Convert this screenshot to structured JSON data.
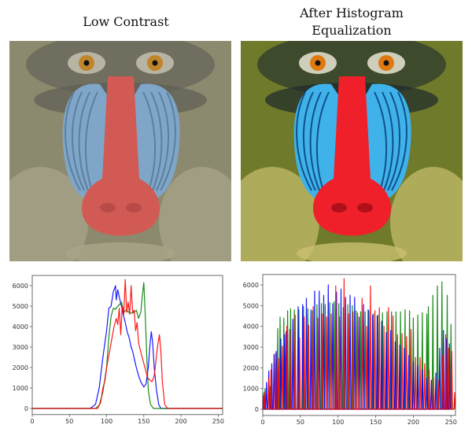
{
  "panels": [
    {
      "title_lines": [
        "Low Contrast"
      ]
    },
    {
      "title_lines": [
        "After Histogram",
        "Equalization"
      ]
    }
  ],
  "image_palettes": [
    {
      "fur": "#8c8a6e",
      "fur2": "#a9a58a",
      "dark": "#5e5c54",
      "cheek": "#7fa6c8",
      "cheek_line": "#5d7f9e",
      "nose": "#d25a55",
      "nose_dark": "#b84a48",
      "eye": "#c0842a",
      "white": "#c9c5b4"
    },
    {
      "fur": "#6f7a2a",
      "fur2": "#c9c070",
      "dark": "#1e2a2e",
      "cheek": "#3fb2ea",
      "cheek_line": "#10508a",
      "nose": "#f0202a",
      "nose_dark": "#b0101a",
      "eye": "#e07a10",
      "white": "#f2efe0"
    }
  ],
  "chart_data": [
    {
      "type": "line",
      "xlim": [
        0,
        256
      ],
      "ylim": [
        -300,
        6500
      ],
      "xticks": [
        0,
        50,
        100,
        150,
        200,
        250
      ],
      "yticks": [
        0,
        1000,
        2000,
        3000,
        4000,
        5000,
        6000
      ],
      "grid": false,
      "series": [
        {
          "color": "#0000ff",
          "points": [
            [
              0,
              0
            ],
            [
              78,
              0
            ],
            [
              85,
              200
            ],
            [
              90,
              1000
            ],
            [
              95,
              2500
            ],
            [
              100,
              3800
            ],
            [
              103,
              4900
            ],
            [
              106,
              5000
            ],
            [
              109,
              5700
            ],
            [
              112,
              6000
            ],
            [
              113,
              5300
            ],
            [
              115,
              5800
            ],
            [
              118,
              5300
            ],
            [
              120,
              5000
            ],
            [
              123,
              4500
            ],
            [
              125,
              4200
            ],
            [
              128,
              3700
            ],
            [
              130,
              3500
            ],
            [
              133,
              3000
            ],
            [
              135,
              2800
            ],
            [
              138,
              2300
            ],
            [
              140,
              2000
            ],
            [
              143,
              1600
            ],
            [
              146,
              1300
            ],
            [
              150,
              1050
            ],
            [
              153,
              1200
            ],
            [
              156,
              2000
            ],
            [
              158,
              3000
            ],
            [
              160,
              3750
            ],
            [
              162,
              3200
            ],
            [
              164,
              2000
            ],
            [
              167,
              900
            ],
            [
              170,
              200
            ],
            [
              173,
              0
            ],
            [
              256,
              0
            ]
          ]
        },
        {
          "color": "#008000",
          "points": [
            [
              0,
              0
            ],
            [
              85,
              0
            ],
            [
              90,
              150
            ],
            [
              95,
              800
            ],
            [
              100,
              2000
            ],
            [
              103,
              3500
            ],
            [
              106,
              4500
            ],
            [
              109,
              4900
            ],
            [
              112,
              4850
            ],
            [
              115,
              5000
            ],
            [
              118,
              5100
            ],
            [
              120,
              5200
            ],
            [
              123,
              4700
            ],
            [
              126,
              4800
            ],
            [
              130,
              4700
            ],
            [
              134,
              4650
            ],
            [
              137,
              4700
            ],
            [
              140,
              4800
            ],
            [
              143,
              4400
            ],
            [
              146,
              4700
            ],
            [
              148,
              5500
            ],
            [
              150,
              6150
            ],
            [
              152,
              4500
            ],
            [
              154,
              2500
            ],
            [
              156,
              900
            ],
            [
              159,
              200
            ],
            [
              163,
              0
            ],
            [
              256,
              0
            ]
          ]
        },
        {
          "color": "#ff0000",
          "points": [
            [
              0,
              0
            ],
            [
              88,
              0
            ],
            [
              92,
              300
            ],
            [
              95,
              1000
            ],
            [
              98,
              1400
            ],
            [
              100,
              2000
            ],
            [
              103,
              2600
            ],
            [
              105,
              3000
            ],
            [
              108,
              3600
            ],
            [
              110,
              4000
            ],
            [
              113,
              4400
            ],
            [
              115,
              4100
            ],
            [
              117,
              4900
            ],
            [
              119,
              3600
            ],
            [
              121,
              5000
            ],
            [
              123,
              4600
            ],
            [
              125,
              6300
            ],
            [
              127,
              4700
            ],
            [
              129,
              5200
            ],
            [
              131,
              4600
            ],
            [
              133,
              6000
            ],
            [
              135,
              4700
            ],
            [
              137,
              4800
            ],
            [
              139,
              3800
            ],
            [
              141,
              4200
            ],
            [
              143,
              3200
            ],
            [
              145,
              2900
            ],
            [
              147,
              2600
            ],
            [
              150,
              2200
            ],
            [
              153,
              1800
            ],
            [
              155,
              1500
            ],
            [
              158,
              1400
            ],
            [
              161,
              1300
            ],
            [
              164,
              1600
            ],
            [
              166,
              2200
            ],
            [
              168,
              2900
            ],
            [
              171,
              3600
            ],
            [
              173,
              2800
            ],
            [
              175,
              1300
            ],
            [
              178,
              200
            ],
            [
              182,
              0
            ],
            [
              256,
              0
            ]
          ]
        }
      ]
    },
    {
      "type": "line",
      "xlim": [
        0,
        256
      ],
      "ylim": [
        -300,
        6500
      ],
      "xticks": [
        0,
        50,
        100,
        150,
        200,
        250
      ],
      "yticks": [
        0,
        1000,
        2000,
        3000,
        4000,
        5000,
        6000
      ],
      "grid": false,
      "series": [
        {
          "color": "#008000",
          "peaks": [
            [
              3,
              1000
            ],
            [
              10,
              1100
            ],
            [
              20,
              3900
            ],
            [
              23,
              4450
            ],
            [
              28,
              4400
            ],
            [
              33,
              4750
            ],
            [
              37,
              4850
            ],
            [
              42,
              4800
            ],
            [
              48,
              4800
            ],
            [
              54,
              4950
            ],
            [
              60,
              4850
            ],
            [
              66,
              4750
            ],
            [
              72,
              5050
            ],
            [
              78,
              5100
            ],
            [
              83,
              5050
            ],
            [
              89,
              5150
            ],
            [
              95,
              5200
            ],
            [
              101,
              5100
            ],
            [
              107,
              4900
            ],
            [
              113,
              5050
            ],
            [
              119,
              5000
            ],
            [
              124,
              4750
            ],
            [
              130,
              4700
            ],
            [
              136,
              4700
            ],
            [
              141,
              4750
            ],
            [
              147,
              4600
            ],
            [
              153,
              4550
            ],
            [
              159,
              4650
            ],
            [
              165,
              4700
            ],
            [
              171,
              4700
            ],
            [
              177,
              4700
            ],
            [
              183,
              4700
            ],
            [
              189,
              4800
            ],
            [
              195,
              4750
            ],
            [
              200,
              4400
            ],
            [
              206,
              4550
            ],
            [
              212,
              4650
            ],
            [
              218,
              4600
            ],
            [
              220,
              4950
            ],
            [
              226,
              5500
            ],
            [
              232,
              5950
            ],
            [
              238,
              6150
            ],
            [
              245,
              5500
            ],
            [
              250,
              4100
            ],
            [
              255,
              500
            ]
          ]
        },
        {
          "color": "#0000ff",
          "peaks": [
            [
              1,
              600
            ],
            [
              5,
              1300
            ],
            [
              8,
              1850
            ],
            [
              12,
              2200
            ],
            [
              15,
              2650
            ],
            [
              18,
              2800
            ],
            [
              24,
              3400
            ],
            [
              29,
              3600
            ],
            [
              31,
              3750
            ],
            [
              36,
              3850
            ],
            [
              40,
              4350
            ],
            [
              47,
              4950
            ],
            [
              53,
              5050
            ],
            [
              58,
              5350
            ],
            [
              64,
              4800
            ],
            [
              69,
              5700
            ],
            [
              75,
              5700
            ],
            [
              81,
              5500
            ],
            [
              87,
              6000
            ],
            [
              93,
              5100
            ],
            [
              98,
              5650
            ],
            [
              104,
              5800
            ],
            [
              110,
              5400
            ],
            [
              116,
              5500
            ],
            [
              122,
              5400
            ],
            [
              128,
              4450
            ],
            [
              134,
              5050
            ],
            [
              140,
              4800
            ],
            [
              146,
              4550
            ],
            [
              152,
              4500
            ],
            [
              158,
              4250
            ],
            [
              164,
              3700
            ],
            [
              170,
              3800
            ],
            [
              176,
              3250
            ],
            [
              182,
              3100
            ],
            [
              188,
              2950
            ],
            [
              194,
              2600
            ],
            [
              200,
              2300
            ],
            [
              206,
              2100
            ],
            [
              212,
              1900
            ],
            [
              218,
              1500
            ],
            [
              224,
              1400
            ],
            [
              230,
              1750
            ],
            [
              235,
              2950
            ],
            [
              240,
              3800
            ],
            [
              244,
              3400
            ],
            [
              248,
              3150
            ]
          ]
        },
        {
          "color": "#ff0000",
          "peaks": [
            [
              2,
              800
            ],
            [
              8,
              1500
            ],
            [
              11,
              1900
            ],
            [
              17,
              2700
            ],
            [
              21,
              2450
            ],
            [
              26,
              3050
            ],
            [
              32,
              4000
            ],
            [
              36,
              3800
            ],
            [
              43,
              4550
            ],
            [
              49,
              3450
            ],
            [
              55,
              4450
            ],
            [
              61,
              4050
            ],
            [
              67,
              4950
            ],
            [
              73,
              4400
            ],
            [
              79,
              4600
            ],
            [
              85,
              4450
            ],
            [
              91,
              4600
            ],
            [
              97,
              5950
            ],
            [
              102,
              4450
            ],
            [
              108,
              6300
            ],
            [
              114,
              4600
            ],
            [
              120,
              4700
            ],
            [
              126,
              4650
            ],
            [
              132,
              5350
            ],
            [
              138,
              4000
            ],
            [
              143,
              5950
            ],
            [
              149,
              4750
            ],
            [
              155,
              4900
            ],
            [
              161,
              4000
            ],
            [
              167,
              4900
            ],
            [
              173,
              4500
            ],
            [
              179,
              3600
            ],
            [
              185,
              3650
            ],
            [
              191,
              3500
            ],
            [
              197,
              3850
            ],
            [
              203,
              2500
            ],
            [
              209,
              2500
            ],
            [
              215,
              2200
            ],
            [
              221,
              1900
            ],
            [
              227,
              1500
            ],
            [
              233,
              1400
            ],
            [
              239,
              2600
            ],
            [
              243,
              3600
            ],
            [
              247,
              2950
            ],
            [
              251,
              2800
            ],
            [
              255,
              800
            ]
          ]
        }
      ]
    }
  ]
}
